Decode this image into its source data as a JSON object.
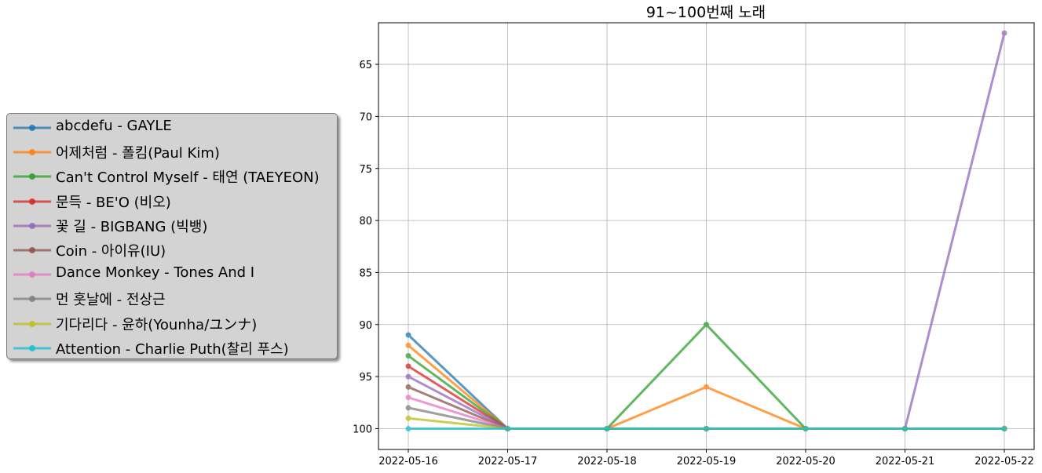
{
  "chart_data": {
    "type": "line",
    "title": "91~100번째 노래",
    "xlabel": "",
    "ylabel": "",
    "x": [
      "2022-05-16",
      "2022-05-17",
      "2022-05-18",
      "2022-05-19",
      "2022-05-20",
      "2022-05-21",
      "2022-05-22"
    ],
    "y_ticks": [
      "65",
      "70",
      "75",
      "80",
      "85",
      "90",
      "95",
      "100"
    ],
    "ylim": [
      102,
      61
    ],
    "y_inverted": true,
    "grid": true,
    "legend_position": "left-outside",
    "series": [
      {
        "name": "abcdefu - GAYLE",
        "color": "#1f77b4",
        "values": [
          91,
          100,
          100,
          100,
          100,
          100,
          100
        ]
      },
      {
        "name": "어제처럼 - 폴킴(Paul Kim)",
        "color": "#ff7f0e",
        "values": [
          92,
          100,
          100,
          96,
          100,
          100,
          100
        ]
      },
      {
        "name": "Can't Control Myself - 태연 (TAEYEON)",
        "color": "#2ca02c",
        "values": [
          93,
          100,
          100,
          90,
          100,
          100,
          100
        ]
      },
      {
        "name": "문득 - BE'O (비오)",
        "color": "#d62728",
        "values": [
          94,
          100,
          100,
          100,
          100,
          100,
          100
        ]
      },
      {
        "name": "꽃 길 - BIGBANG (빅뱅)",
        "color": "#9467bd",
        "values": [
          95,
          100,
          100,
          100,
          100,
          100,
          62
        ]
      },
      {
        "name": "Coin - 아이유(IU)",
        "color": "#8c564b",
        "values": [
          96,
          100,
          100,
          100,
          100,
          100,
          100
        ]
      },
      {
        "name": "Dance Monkey - Tones And I",
        "color": "#e377c2",
        "values": [
          97,
          100,
          100,
          100,
          100,
          100,
          100
        ]
      },
      {
        "name": "먼 훗날에 - 전상근",
        "color": "#7f7f7f",
        "values": [
          98,
          100,
          100,
          100,
          100,
          100,
          100
        ]
      },
      {
        "name": "기다리다 - 윤하(Younha/ユンナ)",
        "color": "#bcbd22",
        "values": [
          99,
          100,
          100,
          100,
          100,
          100,
          100
        ]
      },
      {
        "name": "Attention - Charlie Puth(찰리 푸스)",
        "color": "#17becf",
        "values": [
          100,
          100,
          100,
          100,
          100,
          100,
          100
        ]
      }
    ]
  }
}
